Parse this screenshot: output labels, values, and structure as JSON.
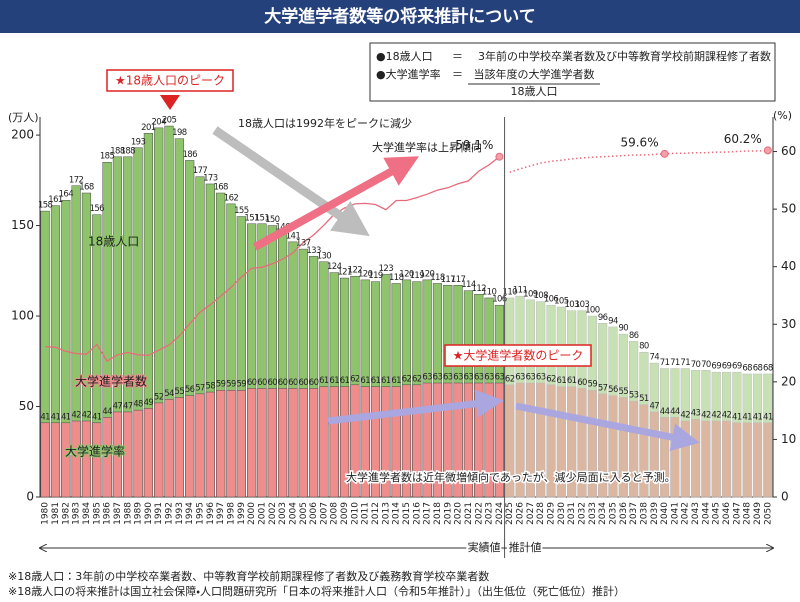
{
  "header": {
    "title": "大学進学者数等の将来推計について"
  },
  "definitions": [
    {
      "term": "●18歳人口",
      "eq": "＝",
      "text": "3年前の中学校卒業者数及び中等教育学校前期課程修了者数"
    },
    {
      "term": "●大学進学率",
      "eq": "＝",
      "numerator": "当該年度の大学進学者数",
      "denominator": "18歳人口"
    }
  ],
  "chart_data": {
    "type": "bar",
    "ylabel": "(万人)",
    "y2label": "(%)",
    "categories": [
      "1980",
      "1981",
      "1982",
      "1983",
      "1984",
      "1985",
      "1986",
      "1987",
      "1988",
      "1989",
      "1990",
      "1991",
      "1992",
      "1993",
      "1994",
      "1995",
      "1996",
      "1997",
      "1998",
      "1999",
      "2000",
      "2001",
      "2002",
      "2003",
      "2004",
      "2005",
      "2006",
      "2007",
      "2008",
      "2009",
      "2010",
      "2011",
      "2012",
      "2013",
      "2014",
      "2015",
      "2016",
      "2017",
      "2018",
      "2019",
      "2020",
      "2021",
      "2022",
      "2023",
      "2024",
      "2025",
      "2026",
      "2027",
      "2028",
      "2029",
      "2030",
      "2031",
      "2032",
      "2033",
      "2034",
      "2035",
      "2036",
      "2037",
      "2038",
      "2039",
      "2040",
      "2041",
      "2042",
      "2043",
      "2044",
      "2045",
      "2046",
      "2047",
      "2048",
      "2049",
      "2050"
    ],
    "series": [
      {
        "name": "18歳人口",
        "color": "#8fc46c",
        "values": [
          158,
          161,
          164,
          172,
          168,
          156,
          185,
          188,
          188,
          193,
          201,
          204,
          205,
          198,
          186,
          177,
          173,
          168,
          162,
          155,
          151,
          151,
          150,
          146,
          141,
          137,
          133,
          130,
          124,
          121,
          122,
          120,
          119,
          123,
          118,
          120,
          119,
          120,
          118,
          117,
          117,
          114,
          112,
          110,
          106,
          110,
          111,
          109,
          108,
          106,
          105,
          103,
          103,
          100,
          96,
          94,
          90,
          86,
          80,
          74,
          71,
          71,
          71,
          70,
          70,
          69,
          69,
          69,
          68,
          68,
          68
        ]
      },
      {
        "name": "大学進学者数",
        "color": "#ef8d8d",
        "values": [
          41,
          41,
          41,
          42,
          42,
          41,
          44,
          47,
          47,
          48,
          49,
          52,
          54,
          55,
          56,
          57,
          58,
          59,
          59,
          59,
          60,
          60,
          60,
          60,
          60,
          60,
          60,
          61,
          61,
          61,
          62,
          61,
          61,
          61,
          61,
          62,
          62,
          63,
          63,
          63,
          63,
          63,
          63,
          63,
          63,
          62,
          63,
          63,
          63,
          62,
          61,
          61,
          60,
          59,
          57,
          56,
          55,
          53,
          51,
          47,
          44,
          44,
          42,
          43,
          42,
          42,
          42,
          41,
          41,
          41,
          41
        ]
      },
      {
        "name": "大学進学率",
        "type": "line",
        "axis": "y2",
        "color": "#e86b7b",
        "values": [
          26.1,
          26.0,
          25.3,
          24.9,
          24.8,
          26.5,
          23.6,
          24.7,
          25.1,
          24.7,
          24.6,
          25.5,
          26.4,
          28.0,
          30.1,
          32.1,
          33.4,
          34.9,
          36.4,
          38.2,
          39.7,
          39.9,
          40.5,
          41.3,
          42.4,
          44.2,
          45.5,
          47.2,
          49.1,
          50.2,
          50.9,
          51.0,
          50.8,
          49.9,
          51.5,
          51.5,
          52.0,
          52.6,
          53.3,
          53.7,
          54.4,
          54.9,
          56.6,
          57.7,
          59.1,
          56.4,
          57.0,
          57.5,
          58.0,
          58.3,
          58.5,
          58.7,
          58.9,
          59.0,
          59.1,
          59.2,
          59.3,
          59.4,
          59.4,
          59.5,
          59.6,
          59.7,
          59.7,
          59.8,
          59.8,
          59.9,
          59.9,
          60.0,
          60.1,
          60.1,
          60.2
        ],
        "value_labels": [
          null,
          null,
          null,
          null,
          null,
          null,
          null,
          null,
          null,
          null,
          null,
          null,
          null,
          null,
          null,
          null,
          null,
          null,
          null,
          null,
          null,
          null,
          null,
          null,
          null,
          null,
          null,
          null,
          null,
          null,
          null,
          null,
          null,
          null,
          null,
          null,
          null,
          null,
          null,
          null,
          null,
          null,
          null,
          null,
          "59.1%",
          null,
          null,
          null,
          null,
          null,
          null,
          null,
          null,
          null,
          null,
          null,
          null,
          null,
          null,
          null,
          "59.6%",
          null,
          null,
          null,
          null,
          null,
          null,
          null,
          null,
          null,
          "60.2%"
        ]
      }
    ],
    "ylim": [
      0,
      210
    ],
    "yticks": [
      0,
      50,
      100,
      150,
      200
    ],
    "y2lim": [
      0,
      66
    ],
    "y2ticks": [
      0,
      10,
      20,
      30,
      40,
      50,
      60
    ],
    "periods": [
      {
        "label": "実績値",
        "from": "1980",
        "to": "2024"
      },
      {
        "label": "推計値",
        "from": "2025",
        "to": "2050"
      }
    ],
    "annotations": [
      "★18歳人口のピーク",
      "18歳人口は1992年をピークに減少",
      "大学進学率は上昇傾向",
      "★大学進学者数のピーク",
      "大学進学者数は近年微増傾向であったが、減少局面に入ると予測。"
    ]
  },
  "notes": [
    "※18歳人口：3年前の中学校卒業者数、中等教育学校前期課程修了者数及び義務教育学校卒業者数",
    "※18歳人口の将来推計は国立社会保障・人口問題研究所「日本の将来推計人口（令和5年推計）」（出生低位（死亡低位）推計）"
  ]
}
